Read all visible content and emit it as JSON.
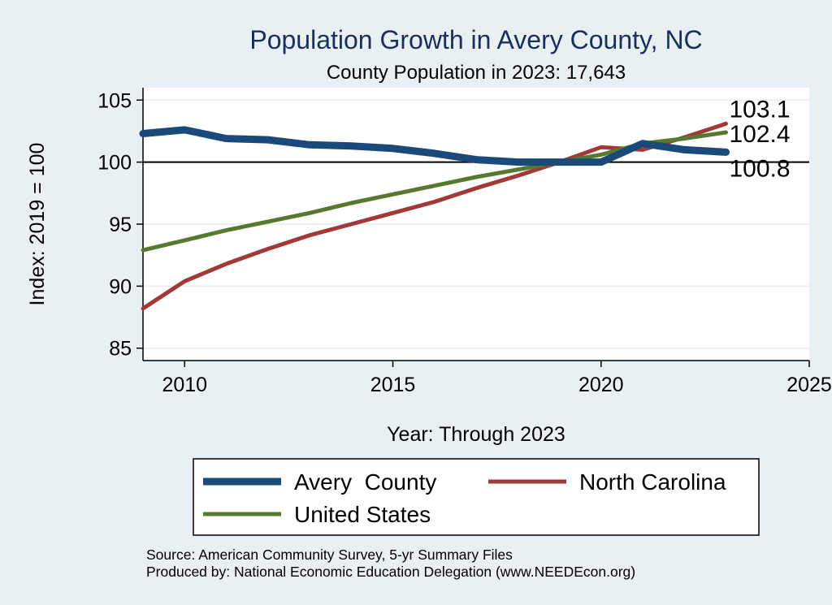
{
  "chart_data": {
    "type": "line",
    "title": "Population Growth in Avery County, NC",
    "subtitle": "County Population in 2023: 17,643",
    "xlabel": "Year: Through 2023",
    "ylabel": "Index: 2019 = 100",
    "xlim": [
      2009,
      2025
    ],
    "ylim": [
      84,
      106
    ],
    "x_ticks": [
      2010,
      2015,
      2020,
      2025
    ],
    "y_ticks": [
      85,
      90,
      95,
      100,
      105
    ],
    "reference_line": 100,
    "grid": "horizontal",
    "legend_position": "bottom",
    "x": [
      2009,
      2010,
      2011,
      2012,
      2013,
      2014,
      2015,
      2016,
      2017,
      2018,
      2019,
      2020,
      2021,
      2022,
      2023
    ],
    "series": [
      {
        "name": "Avery  County",
        "color": "#1a4a7a",
        "values": [
          102.3,
          102.6,
          101.9,
          101.8,
          101.4,
          101.3,
          101.1,
          100.7,
          100.2,
          100.0,
          100.0,
          100.0,
          101.5,
          101.0,
          100.8
        ],
        "end_label": "100.8"
      },
      {
        "name": "North Carolina",
        "color": "#a23838",
        "values": [
          88.2,
          90.4,
          91.8,
          93.0,
          94.1,
          95.0,
          95.9,
          96.8,
          97.9,
          98.9,
          100.0,
          101.2,
          101.0,
          102.0,
          103.1
        ],
        "end_label": "103.1"
      },
      {
        "name": "United States",
        "color": "#557a2f",
        "values": [
          92.9,
          93.7,
          94.5,
          95.2,
          95.9,
          96.7,
          97.4,
          98.1,
          98.8,
          99.4,
          100.0,
          100.6,
          101.5,
          101.9,
          102.4
        ],
        "end_label": "102.4"
      }
    ]
  },
  "source_lines": [
    "Source: American Community Survey, 5-yr Summary Files",
    "Produced by: National Economic Education Delegation (www.NEEDEcon.org)"
  ]
}
